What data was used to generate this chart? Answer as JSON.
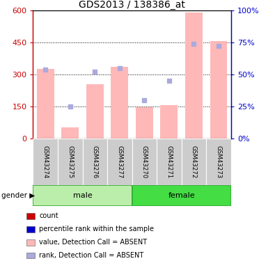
{
  "title": "GDS2013 / 138386_at",
  "samples": [
    "GSM43274",
    "GSM43275",
    "GSM43276",
    "GSM43277",
    "GSM43270",
    "GSM43271",
    "GSM43272",
    "GSM43273"
  ],
  "bar_values": [
    325,
    50,
    255,
    335,
    145,
    155,
    590,
    455
  ],
  "rank_values": [
    54,
    25,
    52,
    55,
    30,
    45,
    74,
    72
  ],
  "ylim_left": [
    0,
    600
  ],
  "ylim_right": [
    0,
    100
  ],
  "yticks_left": [
    0,
    150,
    300,
    450,
    600
  ],
  "yticks_right": [
    0,
    25,
    50,
    75,
    100
  ],
  "ytick_labels_left": [
    "0",
    "150",
    "300",
    "450",
    "600"
  ],
  "ytick_labels_right": [
    "0%",
    "25%",
    "50%",
    "75%",
    "100%"
  ],
  "bar_color_absent": "#ffb8b8",
  "rank_color_absent": "#aaaadd",
  "ylabel_left_color": "#cc0000",
  "ylabel_right_color": "#0000cc",
  "grid_color": "black",
  "background_xtick": "#cccccc",
  "male_color": "#bbeeaa",
  "female_color": "#44dd44",
  "legend_items": [
    {
      "label": "count",
      "color": "#cc0000"
    },
    {
      "label": "percentile rank within the sample",
      "color": "#0000cc"
    },
    {
      "label": "value, Detection Call = ABSENT",
      "color": "#ffb8b8"
    },
    {
      "label": "rank, Detection Call = ABSENT",
      "color": "#aaaadd"
    }
  ]
}
